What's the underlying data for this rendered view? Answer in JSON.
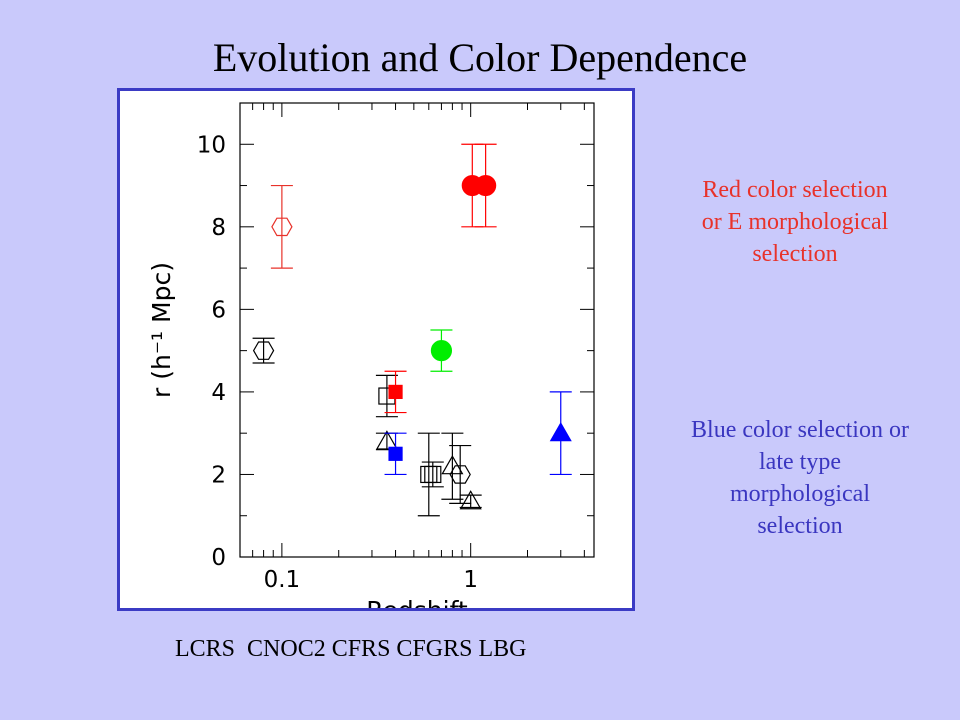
{
  "slide": {
    "title": "Evolution and Color Dependence",
    "red_note": "Red color selection or E morphological selection",
    "blue_note": "Blue color selection or late type morphological selection",
    "survey_labels": "LCRS  CNOC2 CFRS CFGRS LBG",
    "colors": {
      "background": "#c9c9fb",
      "frame": "#3b3bc4",
      "red_text": "#e8322a",
      "blue_text": "#3a36c0"
    }
  },
  "chart_data": {
    "type": "scatter",
    "xscale": "log",
    "xlim": [
      0.06,
      4.5
    ],
    "ylim": [
      0,
      11
    ],
    "xlabel": "Redshift",
    "ylabel": "r (h⁻¹ Mpc)",
    "x_ticks": [
      {
        "value": 0.1,
        "label": "0.1"
      },
      {
        "value": 1,
        "label": "1"
      }
    ],
    "y_ticks": [
      {
        "value": 0,
        "label": "0"
      },
      {
        "value": 2,
        "label": "2"
      },
      {
        "value": 4,
        "label": "4"
      },
      {
        "value": 6,
        "label": "6"
      },
      {
        "value": 8,
        "label": "8"
      },
      {
        "value": 10,
        "label": "10"
      }
    ],
    "points": [
      {
        "x": 0.08,
        "y": 5.0,
        "err": 0.3,
        "marker": "hexagon",
        "filled": false,
        "color": "#000000"
      },
      {
        "x": 0.1,
        "y": 8.0,
        "err": 1.0,
        "marker": "hexagon",
        "filled": false,
        "color": "#e8322a"
      },
      {
        "x": 0.36,
        "y": 3.9,
        "err": 0.5,
        "marker": "square",
        "filled": false,
        "color": "#000000"
      },
      {
        "x": 0.36,
        "y": 2.8,
        "err": 0.2,
        "marker": "triangle",
        "filled": false,
        "color": "#000000"
      },
      {
        "x": 0.4,
        "y": 4.0,
        "err": 0.5,
        "marker": "square",
        "filled": true,
        "color": "#ff0000"
      },
      {
        "x": 0.4,
        "y": 2.5,
        "err": 0.5,
        "marker": "square",
        "filled": true,
        "color": "#0000ff"
      },
      {
        "x": 0.6,
        "y": 2.0,
        "err": 1.0,
        "marker": "square",
        "filled": false,
        "color": "#000000"
      },
      {
        "x": 0.63,
        "y": 2.0,
        "err": 0.3,
        "marker": "square",
        "filled": false,
        "color": "#000000"
      },
      {
        "x": 0.7,
        "y": 5.0,
        "err": 0.5,
        "marker": "circle",
        "filled": true,
        "color": "#00ee00"
      },
      {
        "x": 0.8,
        "y": 2.2,
        "err": 0.8,
        "marker": "triangle",
        "filled": false,
        "color": "#000000"
      },
      {
        "x": 0.88,
        "y": 2.0,
        "err": 0.7,
        "marker": "hexagon",
        "filled": false,
        "color": "#000000"
      },
      {
        "x": 1.0,
        "y": 1.35,
        "err": 0.15,
        "marker": "triangle",
        "filled": false,
        "color": "#000000"
      },
      {
        "x": 1.02,
        "y": 9.0,
        "err": 1.0,
        "marker": "circle",
        "filled": true,
        "color": "#ff0000"
      },
      {
        "x": 1.2,
        "y": 9.0,
        "err": 1.0,
        "marker": "circle",
        "filled": true,
        "color": "#ff0000"
      },
      {
        "x": 3.0,
        "y": 3.0,
        "err": 1.0,
        "marker": "triangle",
        "filled": true,
        "color": "#0000ff"
      }
    ]
  }
}
